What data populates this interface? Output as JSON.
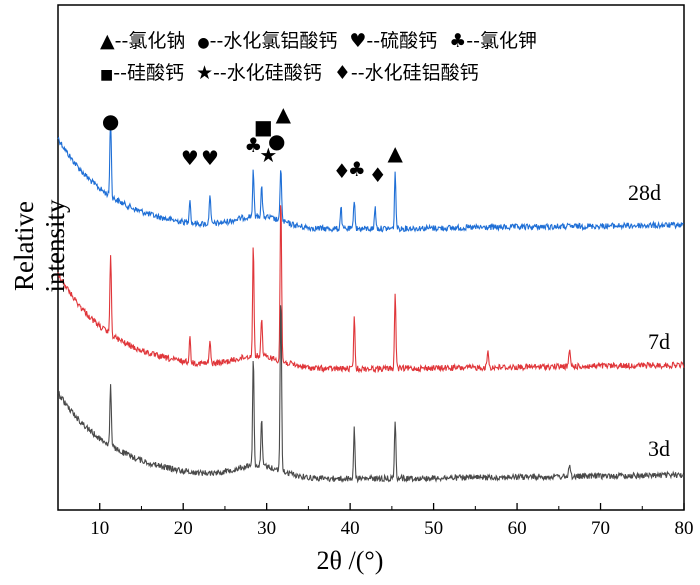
{
  "chart_data": {
    "type": "line",
    "xlabel": "2θ /(°)",
    "ylabel": "Relative intensity",
    "xlim": [
      5,
      80
    ],
    "x_ticks": [
      "10",
      "20",
      "30",
      "40",
      "50",
      "60",
      "70",
      "80"
    ],
    "y_ticks": "none",
    "grid": false,
    "series": [
      {
        "name": "28d",
        "color": "#1f6fd6",
        "peaks": [
          11.3,
          20.8,
          23.2,
          28.4,
          29.4,
          31.7,
          38.9,
          40.5,
          43.0,
          45.4
        ]
      },
      {
        "name": "7d",
        "color": "#e0363a",
        "peaks": [
          11.3,
          20.8,
          23.2,
          28.4,
          29.4,
          31.7,
          40.5,
          45.4,
          56.5,
          66.3
        ]
      },
      {
        "name": "3d",
        "color": "#4a4a4a",
        "peaks": [
          11.3,
          28.4,
          29.4,
          31.7,
          40.5,
          45.4,
          66.3
        ]
      }
    ],
    "legend": {
      "placement": "top",
      "items": [
        {
          "symbol": "▲",
          "label": "--氯化钠"
        },
        {
          "symbol": "●",
          "label": "--水化氯铝酸钙"
        },
        {
          "symbol": "♥",
          "label": "--硫酸钙"
        },
        {
          "symbol": "♣",
          "label": "--氯化钾"
        },
        {
          "symbol": "■",
          "label": "--硅酸钙"
        },
        {
          "symbol": "★",
          "label": "--水化硅酸钙"
        },
        {
          "symbol": "♦",
          "label": "--水化硅铝酸钙"
        }
      ]
    },
    "peak_markers": [
      {
        "symbol": "●",
        "x": 11.3
      },
      {
        "symbol": "♥",
        "x": 20.8
      },
      {
        "symbol": "♥",
        "x": 23.2
      },
      {
        "symbol": "♣",
        "x": 28.4
      },
      {
        "symbol": "■",
        "x": 29.6
      },
      {
        "symbol": "★",
        "x": 30.2
      },
      {
        "symbol": "●",
        "x": 31.2
      },
      {
        "symbol": "▲",
        "x": 32.0
      },
      {
        "symbol": "♦",
        "x": 39.0
      },
      {
        "symbol": "♣",
        "x": 40.8
      },
      {
        "symbol": "♦",
        "x": 43.3
      },
      {
        "symbol": "▲",
        "x": 45.4
      }
    ]
  }
}
